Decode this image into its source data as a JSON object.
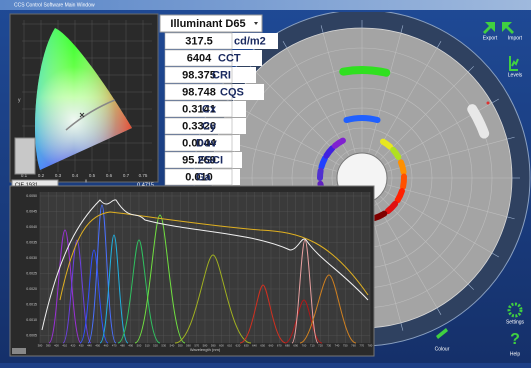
{
  "window": {
    "title": "CCS Control Software Main Window"
  },
  "cie": {
    "x_label": "x",
    "y_label": "y",
    "x_ticks": [
      "0.1",
      "0.2",
      "0.3",
      "0.4",
      "0.5",
      "0.6",
      "0.7",
      "0.75"
    ],
    "dropdown": "CIE 1931",
    "readout": "0.4715"
  },
  "readouts": {
    "illuminant": "Illuminant D65",
    "rows": [
      {
        "value": "317.5",
        "label": "cd/m2"
      },
      {
        "value": "6404",
        "label": "CCT"
      },
      {
        "value": "98.375",
        "label": "CRI"
      },
      {
        "value": "98.748",
        "label": "CQS"
      },
      {
        "value": "0.3141",
        "label": "Cx"
      },
      {
        "value": "0.3326",
        "label": "Cy"
      },
      {
        "value": "0.0044",
        "label": "Duv"
      },
      {
        "value": "95.269",
        "label": "FSCI"
      },
      {
        "value": "0.010",
        "label": "Ga"
      }
    ]
  },
  "buttons": {
    "export": "Export",
    "import": "Import",
    "levels": "Levels",
    "settings": "Settings",
    "help": "Help",
    "colour": "Colour"
  },
  "spectrum": {
    "x_label": "Wavelength (nm)",
    "x_ticks": [
      "380",
      "390",
      "400",
      "410",
      "420",
      "430",
      "440",
      "450",
      "460",
      "470",
      "480",
      "490",
      "500",
      "510",
      "520",
      "530",
      "540",
      "550",
      "560",
      "570",
      "580",
      "590",
      "600",
      "610",
      "620",
      "630",
      "640",
      "650",
      "660",
      "670",
      "680",
      "690",
      "700",
      "710",
      "720",
      "730",
      "740",
      "750",
      "760",
      "770",
      "780"
    ],
    "y_ticks": [
      "0.0050",
      "0.0045",
      "0.0040",
      "0.0035",
      "0.0030",
      "0.0025",
      "0.0020",
      "0.0015",
      "0.0010",
      "0.0005"
    ]
  }
}
